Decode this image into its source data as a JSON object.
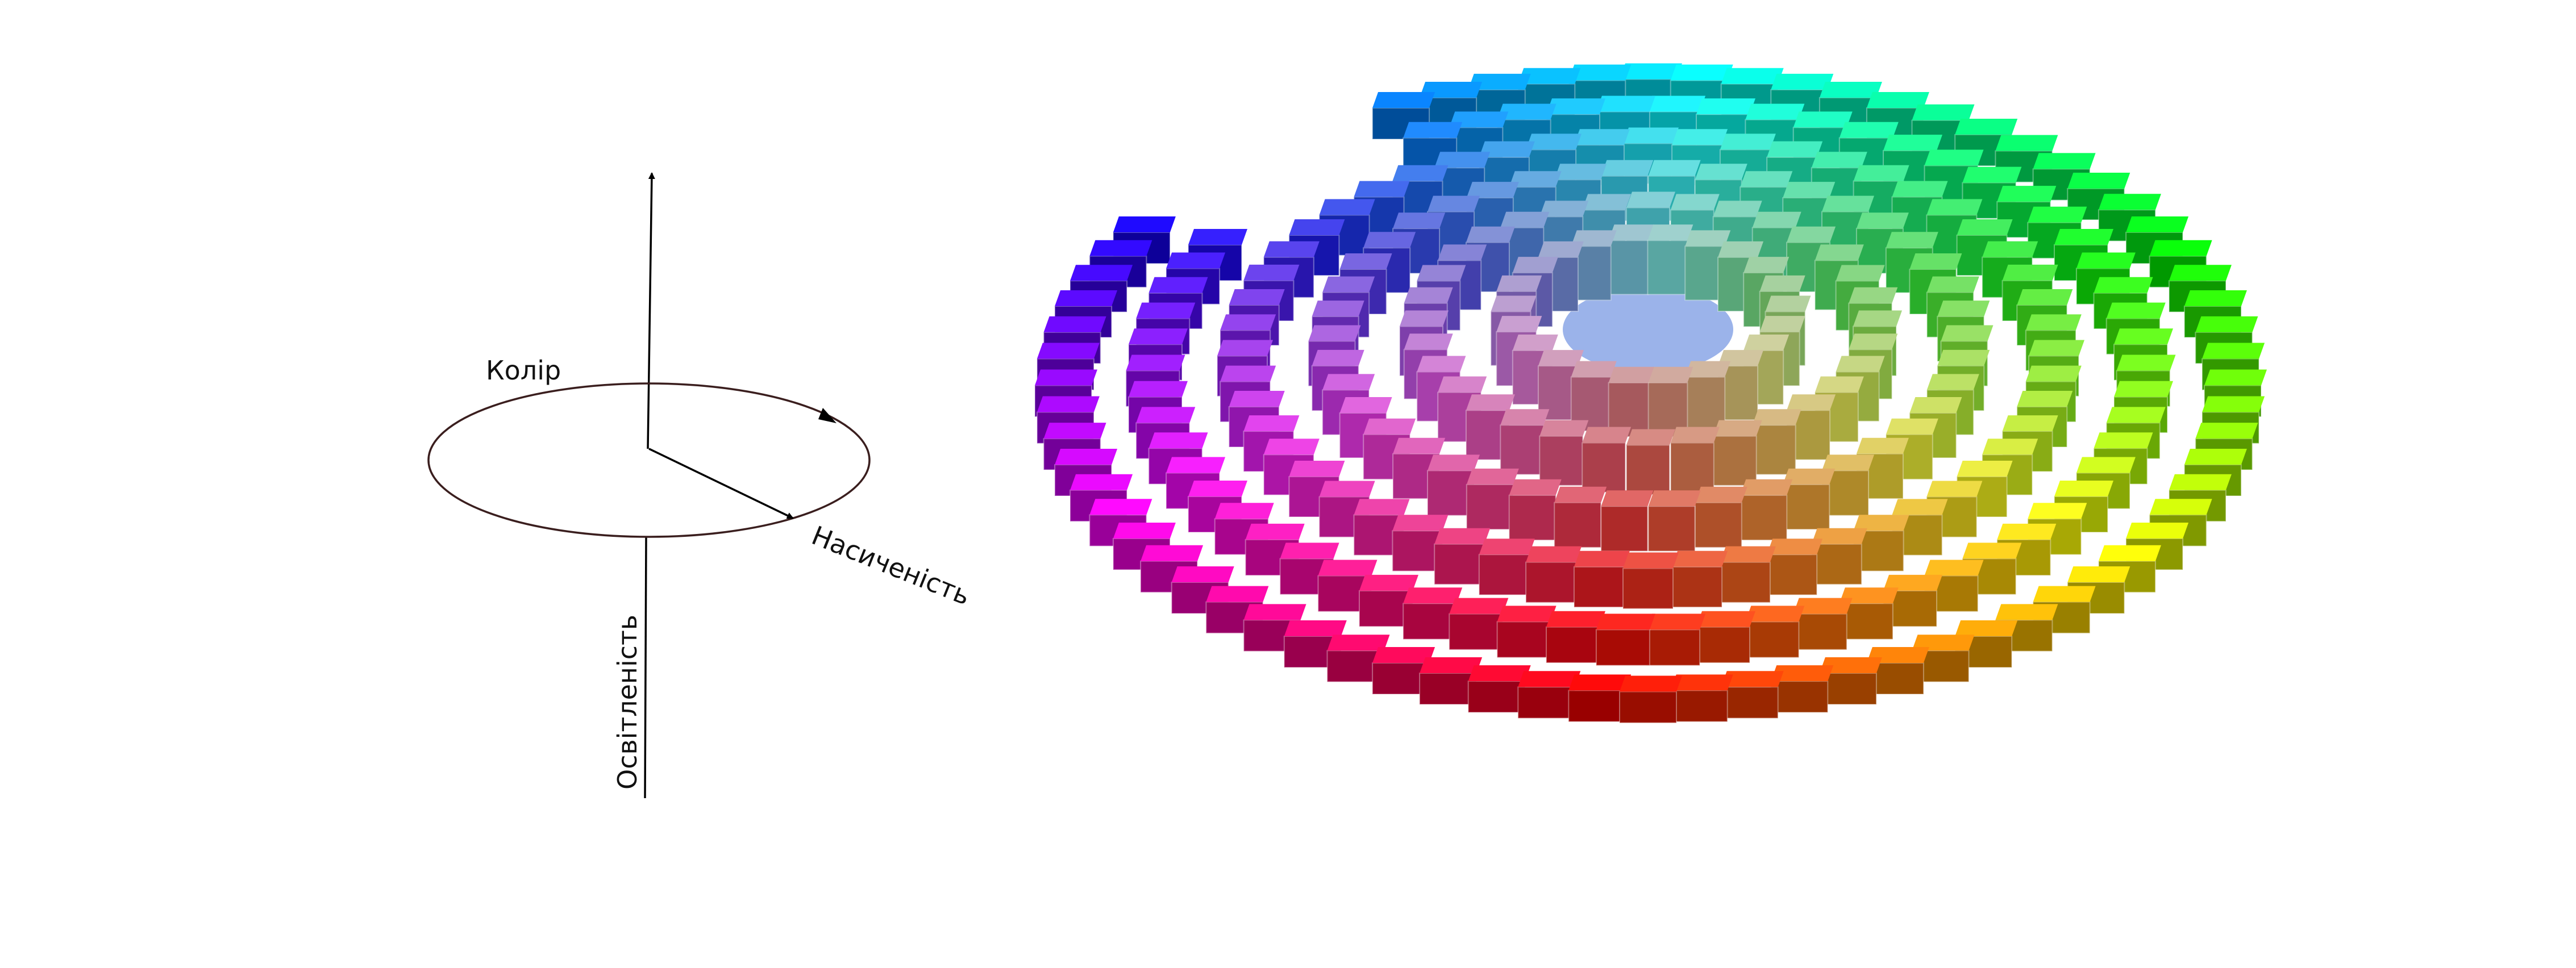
{
  "diagram": {
    "labels": {
      "hue": "Колір",
      "saturation": "Насиченість",
      "lightness": "Освітленість"
    },
    "line_color": "#000000",
    "ellipse_color": "#3a1e1e"
  },
  "color_solid": {
    "ring_count": 6,
    "ring_hue_order": [
      "green",
      "yellow",
      "orange",
      "red",
      "magenta",
      "violet",
      "blue",
      "cyan"
    ]
  }
}
